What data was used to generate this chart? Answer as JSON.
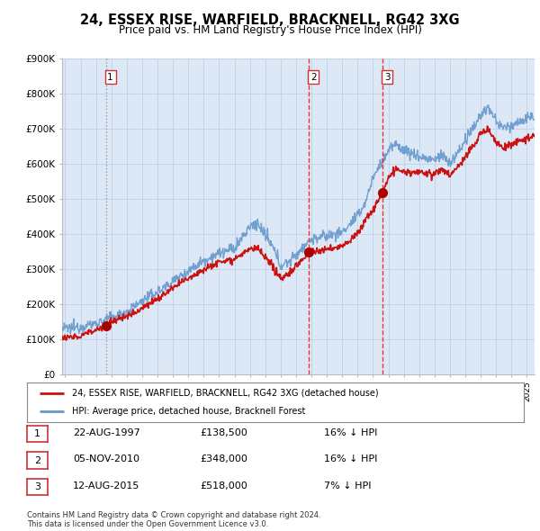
{
  "title": "24, ESSEX RISE, WARFIELD, BRACKNELL, RG42 3XG",
  "subtitle": "Price paid vs. HM Land Registry's House Price Index (HPI)",
  "ylim": [
    0,
    900000
  ],
  "yticks": [
    0,
    100000,
    200000,
    300000,
    400000,
    500000,
    600000,
    700000,
    800000,
    900000
  ],
  "ytick_labels": [
    "£0",
    "£100K",
    "£200K",
    "£300K",
    "£400K",
    "£500K",
    "£600K",
    "£700K",
    "£800K",
    "£900K"
  ],
  "xlim_start": 1994.8,
  "xlim_end": 2025.5,
  "xticks": [
    1995,
    1996,
    1997,
    1998,
    1999,
    2000,
    2001,
    2002,
    2003,
    2004,
    2005,
    2006,
    2007,
    2008,
    2009,
    2010,
    2011,
    2012,
    2013,
    2014,
    2015,
    2016,
    2017,
    2018,
    2019,
    2020,
    2021,
    2022,
    2023,
    2024,
    2025
  ],
  "sale_dates": [
    1997.64,
    2010.84,
    2015.62
  ],
  "sale_prices": [
    138500,
    348000,
    518000
  ],
  "sale_labels": [
    "1",
    "2",
    "3"
  ],
  "vline_color_1": "#999999",
  "vline_color_23": "#ee3333",
  "hpi_color": "#6699cc",
  "sale_line_color": "#cc1111",
  "sale_dot_color": "#aa0000",
  "plot_bg": "#dce8f5",
  "legend_entries": [
    "24, ESSEX RISE, WARFIELD, BRACKNELL, RG42 3XG (detached house)",
    "HPI: Average price, detached house, Bracknell Forest"
  ],
  "table_rows": [
    {
      "num": "1",
      "date": "22-AUG-1997",
      "price": "£138,500",
      "hpi": "16% ↓ HPI"
    },
    {
      "num": "2",
      "date": "05-NOV-2010",
      "price": "£348,000",
      "hpi": "16% ↓ HPI"
    },
    {
      "num": "3",
      "date": "12-AUG-2015",
      "price": "£518,000",
      "hpi": "7% ↓ HPI"
    }
  ],
  "footer": "Contains HM Land Registry data © Crown copyright and database right 2024.\nThis data is licensed under the Open Government Licence v3.0.",
  "bg_color": "#ffffff",
  "grid_color": "#c0d0e8"
}
